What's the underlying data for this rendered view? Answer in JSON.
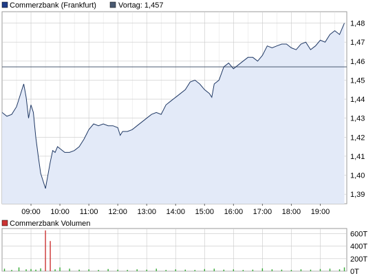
{
  "colors": {
    "series_line": "#1f3864",
    "series_fill": "#e3eaf8",
    "previous_close": "#4a5a72",
    "series_marker": "#1f3c88",
    "previous_marker": "#4a5a72",
    "volume_marker": "#cc3333",
    "grid": "#c8c8c8",
    "volume_up": "#33aa33",
    "volume_down": "#cc3333"
  },
  "legend": {
    "series": "Commerzbank (Frankfurt)",
    "previous": "Vortag: 1,457",
    "volume": "Commerzbank Volumen"
  },
  "chart_data": [
    {
      "type": "line",
      "series": [
        {
          "name": "Commerzbank (Frankfurt)",
          "x": [
            "08:00",
            "08:10",
            "08:20",
            "08:30",
            "08:40",
            "08:45",
            "08:50",
            "08:55",
            "09:00",
            "09:05",
            "09:10",
            "09:15",
            "09:20",
            "09:30",
            "09:40",
            "09:45",
            "09:50",
            "09:55",
            "10:00",
            "10:10",
            "10:20",
            "10:30",
            "10:40",
            "10:50",
            "11:00",
            "11:10",
            "11:20",
            "11:30",
            "11:40",
            "11:50",
            "12:00",
            "12:05",
            "12:10",
            "12:20",
            "12:30",
            "12:40",
            "12:50",
            "13:00",
            "13:10",
            "13:20",
            "13:30",
            "13:40",
            "13:50",
            "14:00",
            "14:10",
            "14:20",
            "14:30",
            "14:40",
            "14:50",
            "15:00",
            "15:10",
            "15:15",
            "15:20",
            "15:30",
            "15:40",
            "15:50",
            "16:00",
            "16:10",
            "16:20",
            "16:30",
            "16:40",
            "16:50",
            "17:00",
            "17:10",
            "17:20",
            "17:30",
            "17:40",
            "17:50",
            "18:00",
            "18:10",
            "18:20",
            "18:30",
            "18:40",
            "18:50",
            "19:00",
            "19:10",
            "19:20",
            "19:30",
            "19:40",
            "19:50"
          ],
          "values": [
            1.433,
            1.431,
            1.432,
            1.436,
            1.444,
            1.448,
            1.441,
            1.43,
            1.437,
            1.433,
            1.42,
            1.41,
            1.401,
            1.393,
            1.407,
            1.413,
            1.412,
            1.415,
            1.414,
            1.412,
            1.412,
            1.413,
            1.415,
            1.419,
            1.424,
            1.427,
            1.426,
            1.427,
            1.426,
            1.426,
            1.425,
            1.421,
            1.423,
            1.423,
            1.424,
            1.426,
            1.428,
            1.43,
            1.432,
            1.433,
            1.432,
            1.437,
            1.439,
            1.441,
            1.443,
            1.445,
            1.449,
            1.45,
            1.448,
            1.445,
            1.443,
            1.441,
            1.448,
            1.45,
            1.457,
            1.459,
            1.456,
            1.458,
            1.46,
            1.462,
            1.462,
            1.46,
            1.463,
            1.468,
            1.467,
            1.468,
            1.469,
            1.469,
            1.467,
            1.466,
            1.469,
            1.47,
            1.466,
            1.468,
            1.471,
            1.47,
            1.474,
            1.476,
            1.474,
            1.48
          ]
        }
      ],
      "previous_close": 1.457,
      "x_tick_labels": [
        "09:00",
        "10:00",
        "11:00",
        "12:00",
        "13:00",
        "14:00",
        "15:00",
        "16:00",
        "17:00",
        "18:00",
        "19:00"
      ],
      "y_tick_labels": [
        "1,39",
        "1,40",
        "1,41",
        "1,42",
        "1,43",
        "1,44",
        "1,45",
        "1,46",
        "1,47",
        "1,48"
      ],
      "y_ticks": [
        1.39,
        1.4,
        1.41,
        1.42,
        1.43,
        1.44,
        1.45,
        1.46,
        1.47,
        1.48
      ],
      "ylim": [
        1.385,
        1.486
      ],
      "xlim": [
        "08:00",
        "19:55"
      ],
      "grid": true
    },
    {
      "type": "bar",
      "series": [
        {
          "name": "Commerzbank Volumen",
          "unit": "T",
          "x": [
            "08:05",
            "08:20",
            "08:35",
            "08:50",
            "09:00",
            "09:10",
            "09:20",
            "09:30",
            "09:40",
            "09:50",
            "10:00",
            "10:20",
            "10:40",
            "11:00",
            "11:20",
            "11:40",
            "12:00",
            "12:20",
            "12:40",
            "13:00",
            "13:20",
            "13:40",
            "14:00",
            "14:20",
            "14:40",
            "15:00",
            "15:20",
            "15:40",
            "16:00",
            "16:20",
            "16:40",
            "17:00",
            "17:20",
            "17:40",
            "18:00",
            "18:20",
            "18:40",
            "19:00",
            "19:20",
            "19:40",
            "19:50"
          ],
          "values": [
            40,
            20,
            60,
            30,
            35,
            25,
            45,
            650,
            480,
            30,
            60,
            40,
            25,
            30,
            20,
            35,
            25,
            20,
            30,
            25,
            40,
            20,
            30,
            25,
            20,
            35,
            40,
            25,
            30,
            20,
            25,
            45,
            30,
            25,
            20,
            30,
            25,
            35,
            40,
            30,
            60
          ]
        }
      ],
      "y_tick_labels": [
        "600T",
        "400T",
        "200T",
        "0T"
      ],
      "y_ticks": [
        600,
        400,
        200,
        0
      ],
      "ylim": [
        0,
        680
      ],
      "grid": true
    }
  ]
}
